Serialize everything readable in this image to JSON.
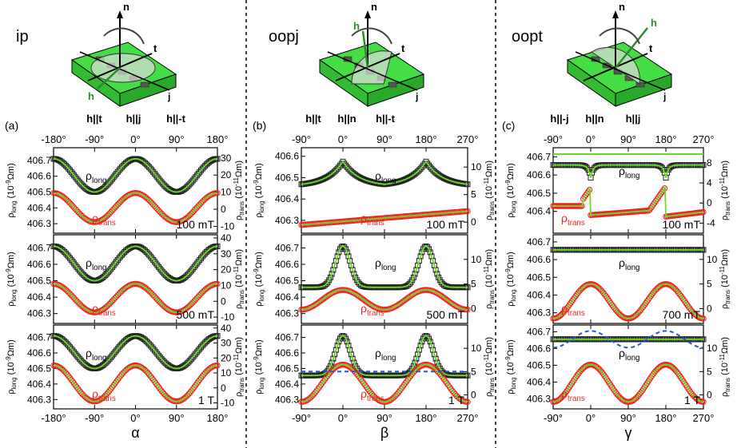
{
  "columns": [
    {
      "title": "ip",
      "panel_label": "(a)",
      "angle_symbol": "α",
      "ticks": [
        "-180°",
        "-90°",
        "0°",
        "90°",
        "180°"
      ],
      "top_marks": [
        "h||t",
        "h||j",
        "h||-t"
      ],
      "field_vector": "h",
      "axes": {
        "n": "n",
        "t": "t",
        "j": "j"
      },
      "right_ticks": [
        [
          "30",
          "20",
          "10",
          "0",
          "-10"
        ],
        [
          "40",
          "30",
          "20",
          "10",
          "0",
          "-10"
        ],
        [
          "40",
          "30",
          "20",
          "10",
          "0",
          "-10"
        ]
      ],
      "fields": [
        "100 mT",
        "500 mT",
        "1 T"
      ]
    },
    {
      "title": "oopj",
      "panel_label": "(b)",
      "angle_symbol": "β",
      "ticks": [
        "-90°",
        "0°",
        "90°",
        "180°",
        "270°"
      ],
      "top_marks": [
        "h||t",
        "h||n",
        "h||-t"
      ],
      "field_vector": "h",
      "axes": {
        "n": "n",
        "t": "t",
        "j": "j"
      },
      "right_ticks": [
        [
          "10",
          "5",
          "0"
        ],
        [
          "10",
          "5",
          "0"
        ],
        [
          "10",
          "5",
          "0"
        ]
      ],
      "fields": [
        "100 mT",
        "500 mT",
        "1 T"
      ]
    },
    {
      "title": "oopt",
      "panel_label": "(c)",
      "angle_symbol": "γ",
      "ticks": [
        "-90°",
        "0°",
        "90°",
        "180°",
        "270°"
      ],
      "top_marks": [
        "h||-j",
        "h||n",
        "h||j"
      ],
      "field_vector": "h",
      "axes": {
        "n": "n",
        "t": "t",
        "j": "j"
      },
      "right_ticks": [
        [
          "8",
          "4",
          "0",
          "-4"
        ],
        [
          "10",
          "5",
          "0"
        ],
        [
          "10",
          "5",
          "0"
        ]
      ],
      "fields": [
        "100 mT",
        "700 mT",
        "1 T"
      ]
    }
  ],
  "labels": {
    "rho": "ρ",
    "long": "long",
    "trans": "trans",
    "left_unit": "(10",
    "left_exp": "-9",
    "right_exp": "-11",
    "unit_tail": "Ωm)"
  },
  "colors": {
    "long": "#222222",
    "trans": "#ee2222",
    "fit": "#66dd22",
    "dash": "#2255dd",
    "box": "#44dd44"
  },
  "chart_data": [
    {
      "type": "scatter",
      "panel": "a-100mT",
      "x_range": [
        -180,
        180
      ],
      "left_ylim": [
        406.24,
        406.78
      ],
      "left_ticks": [
        406.3,
        406.4,
        406.5,
        406.6,
        406.7
      ],
      "right_ylim": [
        -14,
        36
      ],
      "series": [
        {
          "name": "ρlong",
          "model": "cos2",
          "center": 406.605,
          "amplitude": 0.105,
          "phase_deg": 0
        },
        {
          "name": "ρtrans",
          "model": "sin2",
          "center": 1,
          "amplitude": 8.5,
          "phase_deg": -45
        }
      ]
    },
    {
      "type": "scatter",
      "panel": "a-500mT",
      "x_range": [
        -180,
        180
      ],
      "left_ylim": [
        406.24,
        406.78
      ],
      "left_ticks": [
        406.3,
        406.4,
        406.5,
        406.6,
        406.7
      ],
      "right_ylim": [
        -14,
        42
      ],
      "series": [
        {
          "name": "ρlong",
          "model": "cos2",
          "center": 406.605,
          "amplitude": 0.105,
          "phase_deg": 0
        },
        {
          "name": "ρtrans",
          "model": "sin2",
          "center": 2,
          "amplitude": 9,
          "phase_deg": -45
        }
      ]
    },
    {
      "type": "scatter",
      "panel": "a-1T",
      "x_range": [
        -180,
        180
      ],
      "left_ylim": [
        406.24,
        406.78
      ],
      "left_ticks": [
        406.3,
        406.4,
        406.5,
        406.6,
        406.7
      ],
      "right_ylim": [
        -14,
        42
      ],
      "series": [
        {
          "name": "ρlong",
          "model": "cos2",
          "center": 406.605,
          "amplitude": 0.105,
          "phase_deg": 0
        },
        {
          "name": "ρtrans",
          "model": "sin2",
          "center": 3,
          "amplitude": 12,
          "phase_deg": -45
        }
      ]
    },
    {
      "type": "scatter",
      "panel": "b-100mT",
      "x_range": [
        -90,
        270
      ],
      "left_ylim": [
        406.24,
        406.64
      ],
      "left_ticks": [
        406.3,
        406.4,
        406.5,
        406.6
      ],
      "right_ylim": [
        -2,
        13.5
      ],
      "series": [
        {
          "name": "ρlong",
          "model": "cusp",
          "base": 406.46,
          "peak": 406.575,
          "cusps_deg": [
            0,
            180
          ]
        },
        {
          "name": "ρtrans",
          "model": "linear-drift",
          "start": -0.5,
          "end": 2,
          "cusps_deg": [
            0,
            180
          ]
        }
      ]
    },
    {
      "type": "scatter",
      "panel": "b-500mT",
      "x_range": [
        -90,
        270
      ],
      "left_ylim": [
        406.24,
        406.78
      ],
      "left_ticks": [
        406.3,
        406.4,
        406.5,
        406.6,
        406.7
      ],
      "right_ylim": [
        -3,
        15
      ],
      "series": [
        {
          "name": "ρlong",
          "model": "peaks",
          "base": 406.46,
          "peak": 406.71,
          "peaks_deg": [
            0,
            180
          ]
        },
        {
          "name": "ρtrans",
          "model": "cos2",
          "center": 1.8,
          "amplitude": 2,
          "phase_deg": 180
        }
      ]
    },
    {
      "type": "scatter",
      "panel": "b-1T",
      "x_range": [
        -90,
        270
      ],
      "left_ylim": [
        406.24,
        406.78
      ],
      "left_ticks": [
        406.3,
        406.4,
        406.5,
        406.6,
        406.7
      ],
      "right_ylim": [
        -3,
        15
      ],
      "series": [
        {
          "name": "ρlong",
          "model": "peaks",
          "base": 406.455,
          "peak": 406.71,
          "peaks_deg": [
            0,
            180
          ]
        },
        {
          "name": "ρtrans",
          "model": "cos2",
          "center": 2.5,
          "amplitude": 4,
          "phase_deg": 180
        },
        {
          "name": "dashed",
          "model": "const",
          "value": 406.48
        }
      ]
    },
    {
      "type": "scatter",
      "panel": "c-100mT",
      "x_range": [
        -90,
        270
      ],
      "left_ylim": [
        406.28,
        406.75
      ],
      "left_ticks": [
        406.4,
        406.5,
        406.6,
        406.7
      ],
      "right_ylim": [
        -6,
        11
      ],
      "series": [
        {
          "name": "ρlong",
          "model": "dips",
          "base": 406.655,
          "dip": 406.585,
          "dips_deg": [
            0,
            180
          ]
        },
        {
          "name": "ρtrans",
          "model": "tan-like",
          "center": 0,
          "amplitude": 3
        },
        {
          "name": "fit-long",
          "model": "const",
          "value": 406.715
        }
      ]
    },
    {
      "type": "scatter",
      "panel": "c-700mT",
      "x_range": [
        -90,
        270
      ],
      "left_ylim": [
        406.24,
        406.74
      ],
      "left_ticks": [
        406.3,
        406.4,
        406.5,
        406.6,
        406.7
      ],
      "right_ylim": [
        -3,
        15
      ],
      "series": [
        {
          "name": "ρlong",
          "model": "const",
          "value": 406.655
        },
        {
          "name": "ρtrans",
          "model": "cos2",
          "center": 1.5,
          "amplitude": 3.5,
          "phase_deg": 180
        }
      ]
    },
    {
      "type": "scatter",
      "panel": "c-1T",
      "x_range": [
        -90,
        270
      ],
      "left_ylim": [
        406.24,
        406.74
      ],
      "left_ticks": [
        406.3,
        406.4,
        406.5,
        406.6,
        406.7
      ],
      "right_ylim": [
        -3,
        15
      ],
      "series": [
        {
          "name": "ρlong",
          "model": "const",
          "value": 406.655
        },
        {
          "name": "ρtrans",
          "model": "cos2",
          "center": 2.5,
          "amplitude": 4,
          "phase_deg": 180
        },
        {
          "name": "dashed",
          "model": "cos2",
          "center": 406.655,
          "amplitude": 0.05,
          "phase_deg": 0
        }
      ]
    }
  ]
}
